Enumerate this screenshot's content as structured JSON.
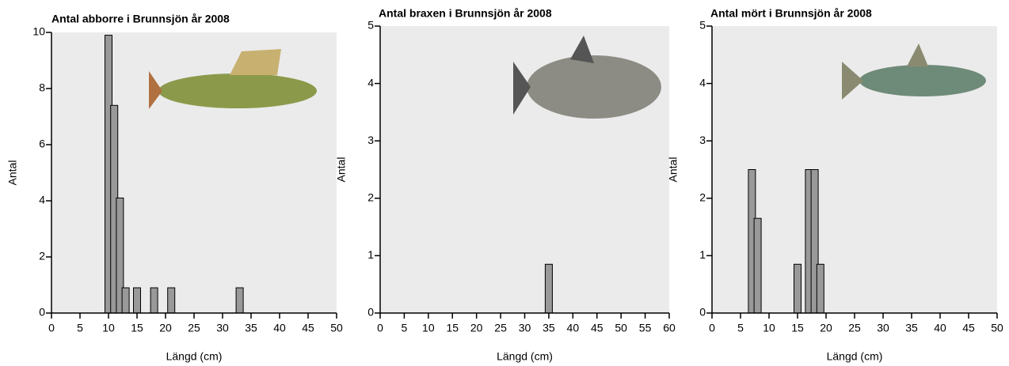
{
  "chart_data": [
    {
      "type": "bar",
      "title": "Antal abborre i Brunnsjön år 2008",
      "x_label": "Längd (cm)",
      "y_label": "Antal",
      "x": [
        10,
        11,
        12,
        13,
        15,
        18,
        21,
        33
      ],
      "values": [
        9.9,
        7.4,
        4.1,
        0.9,
        0.9,
        0.9,
        0.9,
        0.9
      ],
      "color": "#999999",
      "xlim": [
        0,
        50
      ],
      "xticks": [
        0,
        5,
        10,
        15,
        20,
        25,
        30,
        35,
        40,
        45,
        50
      ],
      "ylim": [
        0,
        10
      ],
      "yticks": [
        0,
        2,
        4,
        6,
        8,
        10
      ]
    },
    {
      "type": "bar",
      "title": "Antal braxen i Brunnsjön år 2008",
      "x_label": "Längd (cm)",
      "y_label": "Antal",
      "x": [
        35
      ],
      "values": [
        0.85
      ],
      "color": "#999999",
      "xlim": [
        0,
        60
      ],
      "xticks": [
        0,
        5,
        10,
        15,
        20,
        25,
        30,
        35,
        40,
        45,
        50,
        55,
        60
      ],
      "ylim": [
        0,
        5
      ],
      "yticks": [
        0,
        1,
        2,
        3,
        4,
        5
      ]
    },
    {
      "type": "bar",
      "title": "Antal mört i Brunnsjön år 2008",
      "x_label": "Längd (cm)",
      "y_label": "Antal",
      "x": [
        7,
        8,
        15,
        17,
        18,
        19
      ],
      "values": [
        2.5,
        1.65,
        0.85,
        2.5,
        2.5,
        0.85
      ],
      "color": "#999999",
      "xlim": [
        0,
        50
      ],
      "xticks": [
        0,
        5,
        10,
        15,
        20,
        25,
        30,
        35,
        40,
        45,
        50
      ],
      "ylim": [
        0,
        5
      ],
      "yticks": [
        0,
        1,
        2,
        3,
        4,
        5
      ]
    }
  ]
}
